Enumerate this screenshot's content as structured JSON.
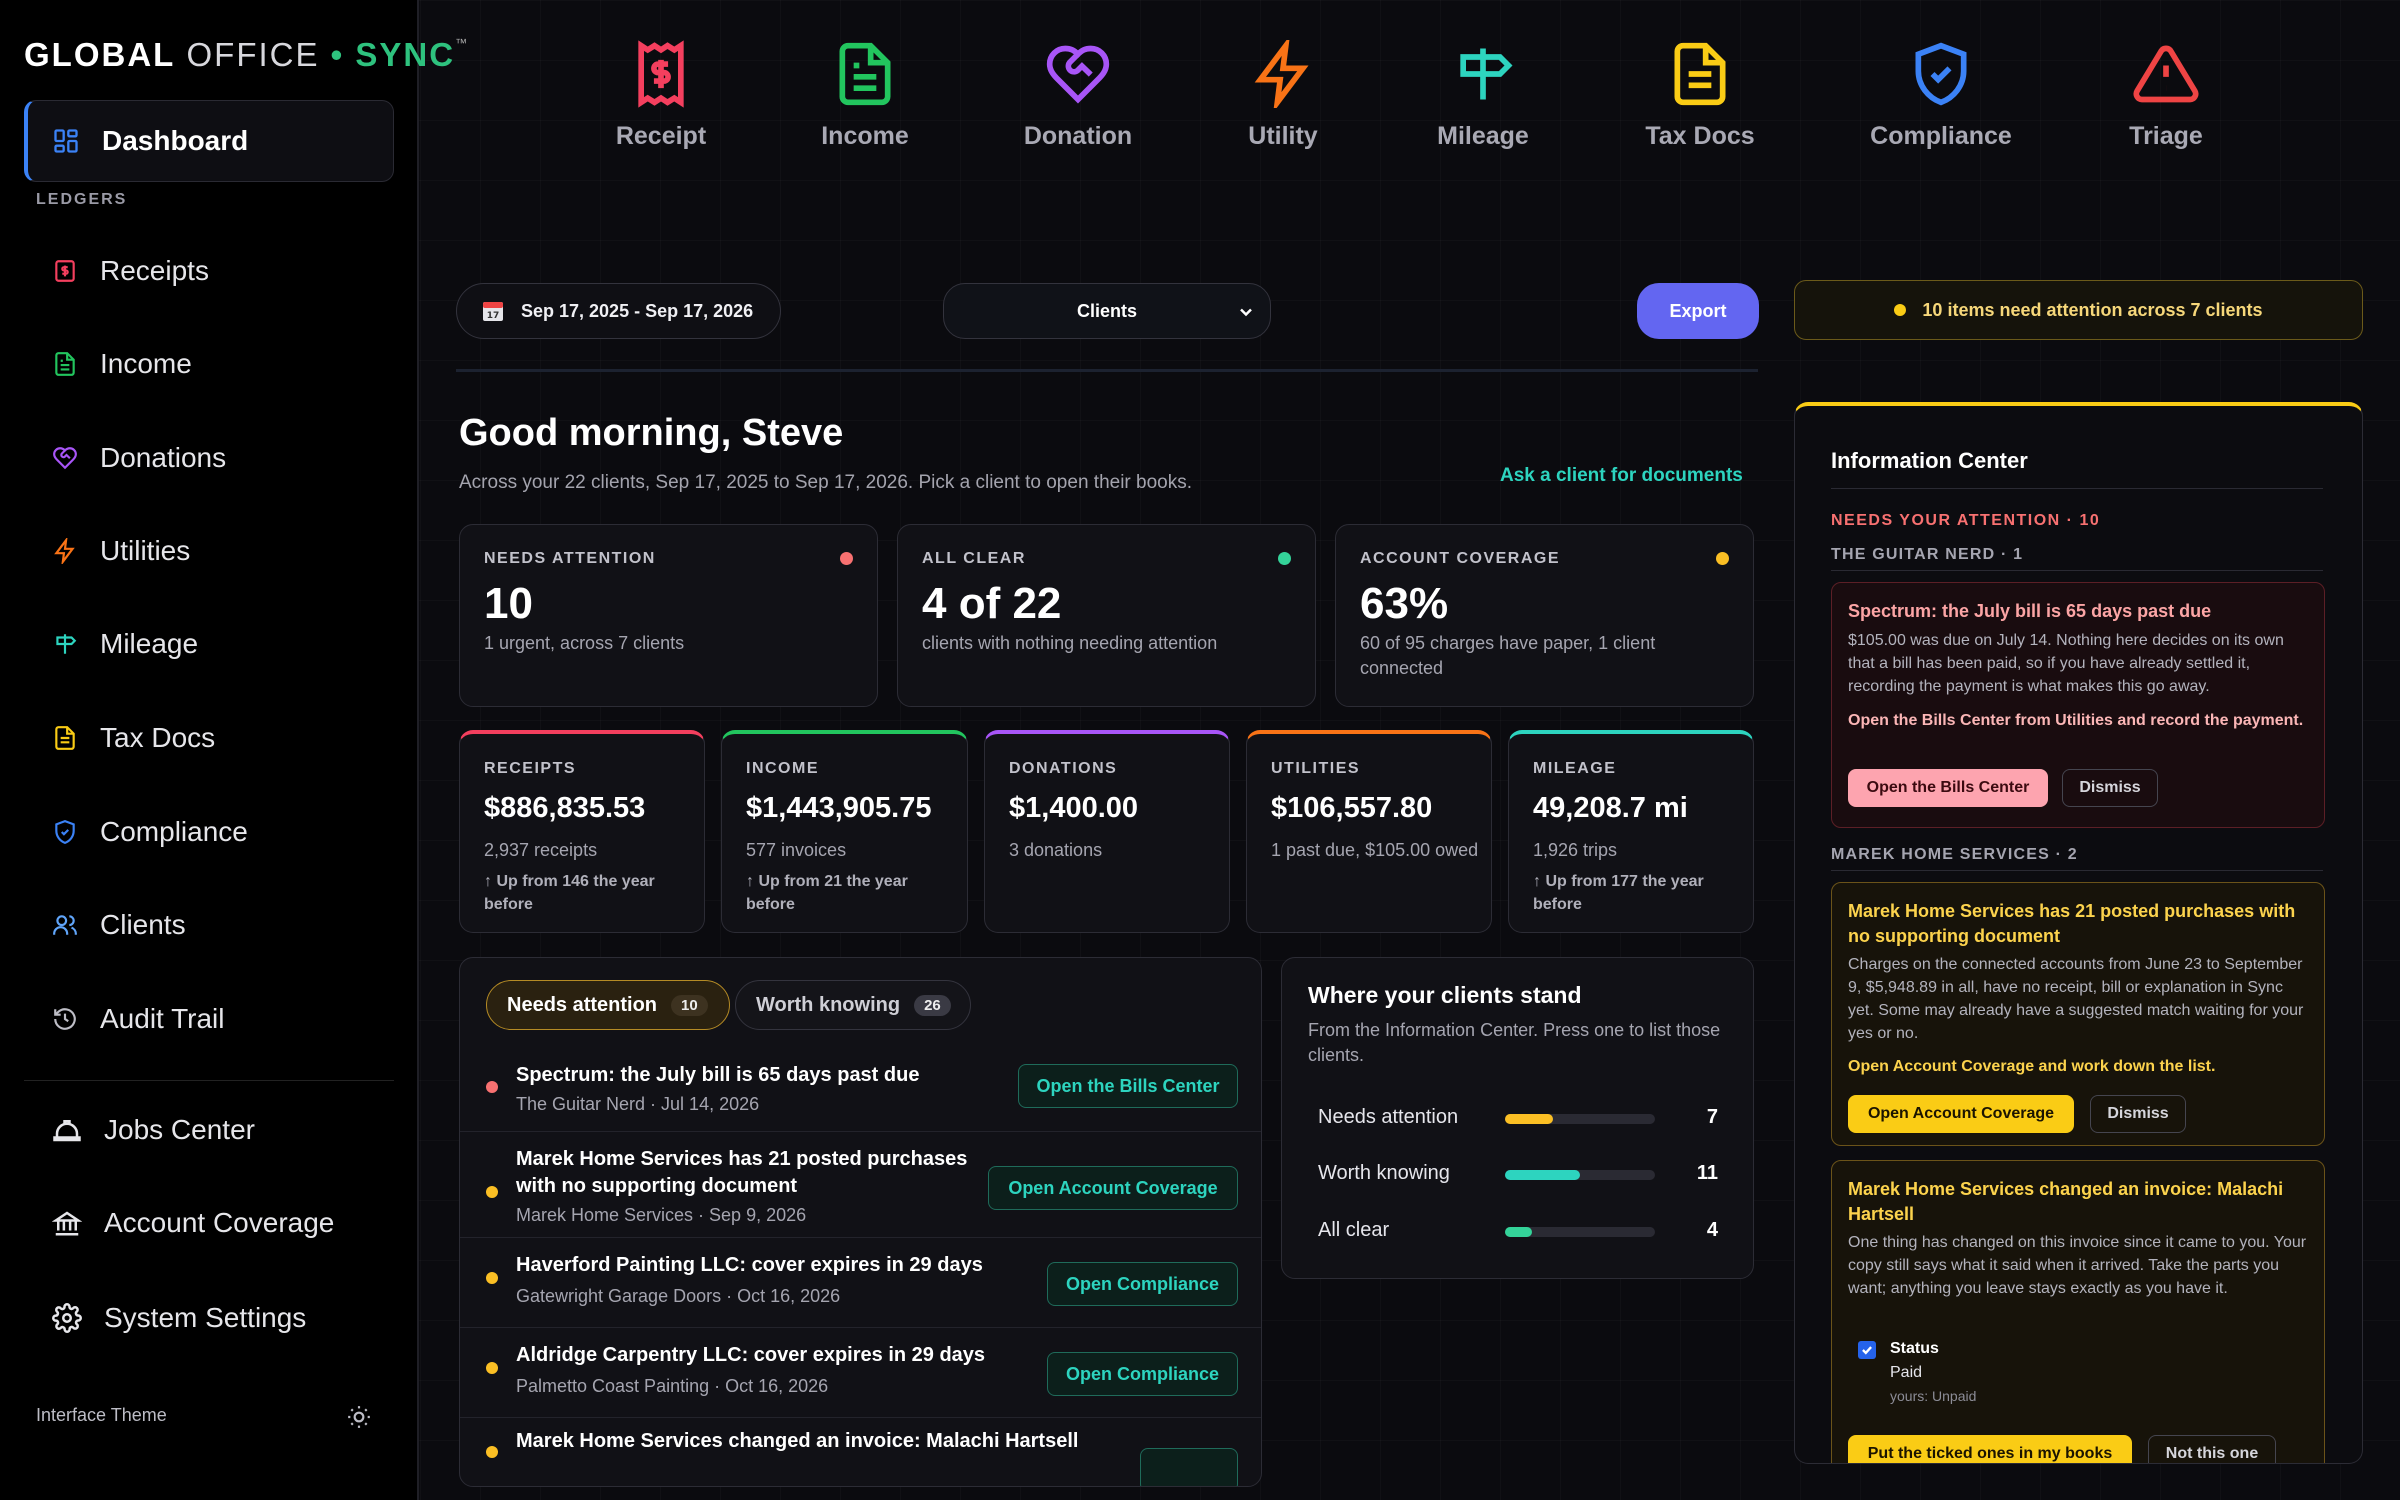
{
  "sidebar": {
    "logo": {
      "part1": "GLOBAL",
      "part2": " OFFICE",
      "sep": " • ",
      "part3": "SYNC",
      "tm": "™"
    },
    "dashboard": "Dashboard",
    "section": "LEDGERS",
    "items": [
      {
        "label": "Receipts"
      },
      {
        "label": "Income"
      },
      {
        "label": "Donations"
      },
      {
        "label": "Utilities"
      },
      {
        "label": "Mileage"
      },
      {
        "label": "Tax Docs"
      },
      {
        "label": "Compliance"
      },
      {
        "label": "Clients"
      },
      {
        "label": "Audit Trail"
      }
    ],
    "bottom": [
      {
        "label": "Jobs Center"
      },
      {
        "label": "Account Coverage"
      },
      {
        "label": "System Settings"
      }
    ],
    "theme": "Interface Theme"
  },
  "top_icons": [
    {
      "label": "Receipt",
      "icon": "receipt-icon",
      "color": "#f43f5e"
    },
    {
      "label": "Income",
      "icon": "document-icon",
      "color": "#22c55e"
    },
    {
      "label": "Donation",
      "icon": "heart-handshake-icon",
      "color": "#a855f7"
    },
    {
      "label": "Utility",
      "icon": "bolt-icon",
      "color": "#f97316"
    },
    {
      "label": "Mileage",
      "icon": "signpost-icon",
      "color": "#2dd4bf"
    },
    {
      "label": "Tax Docs",
      "icon": "tax-doc-icon",
      "color": "#facc15"
    },
    {
      "label": "Compliance",
      "icon": "shield-check-icon",
      "color": "#3b82f6"
    },
    {
      "label": "Triage",
      "icon": "warning-icon",
      "color": "#ef4444"
    }
  ],
  "controls": {
    "date_range": "Sep 17, 2025 - Sep 17, 2026",
    "clients_select": "Clients",
    "export": "Export",
    "attention_banner": "10 items need attention across 7 clients"
  },
  "greeting": {
    "title": "Good morning, Steve",
    "subtitle": "Across your 22 clients, Sep 17, 2025 to Sep 17, 2026. Pick a client to open their books.",
    "ask_link": "Ask a client for documents"
  },
  "stats": [
    {
      "caption": "NEEDS ATTENTION",
      "value": "10",
      "desc": "1 urgent, across 7 clients",
      "color": "#f87171"
    },
    {
      "caption": "ALL CLEAR",
      "value": "4 of 22",
      "desc": "clients with nothing needing attention",
      "color": "#34d399"
    },
    {
      "caption": "ACCOUNT COVERAGE",
      "value": "63%",
      "desc": "60 of 95 charges have paper, 1 client connected",
      "color": "#fbbf24"
    }
  ],
  "ledgers": [
    {
      "caption": "RECEIPTS",
      "value": "$886,835.53",
      "sub": "2,937 receipts",
      "trend": "↑ Up from 146 the year before",
      "color": "#f43f5e"
    },
    {
      "caption": "INCOME",
      "value": "$1,443,905.75",
      "sub": "577 invoices",
      "trend": "↑ Up from 21 the year before",
      "color": "#22c55e"
    },
    {
      "caption": "DONATIONS",
      "value": "$1,400.00",
      "sub": "3 donations",
      "trend": "",
      "color": "#a855f7"
    },
    {
      "caption": "UTILITIES",
      "value": "$106,557.80",
      "sub": "1 past due, $105.00 owed",
      "trend": "",
      "color": "#f97316"
    },
    {
      "caption": "MILEAGE",
      "value": "49,208.7 mi",
      "sub": "1,926 trips",
      "trend": "↑ Up from 177 the year before",
      "color": "#2dd4bf"
    }
  ],
  "feed": {
    "tab_needs": "Needs attention",
    "tab_needs_count": "10",
    "tab_worth": "Worth knowing",
    "tab_worth_count": "26",
    "items": [
      {
        "title": "Spectrum: the July bill is 65 days past due",
        "sub": "The Guitar Nerd · Jul 14, 2026",
        "action": "Open the Bills Center",
        "color": "#f87171"
      },
      {
        "title": "Marek Home Services has 21 posted purchases with no supporting document",
        "sub": "Marek Home Services · Sep 9, 2026",
        "action": "Open Account Coverage",
        "color": "#fbbf24"
      },
      {
        "title": "Haverford Painting LLC: cover expires in 29 days",
        "sub": "Gatewright Garage Doors · Oct 16, 2026",
        "action": "Open Compliance",
        "color": "#fbbf24"
      },
      {
        "title": "Aldridge Carpentry LLC: cover expires in 29 days",
        "sub": "Palmetto Coast Painting · Oct 16, 2026",
        "action": "Open Compliance",
        "color": "#fbbf24"
      },
      {
        "title": "Marek Home Services changed an invoice: Malachi Hartsell",
        "sub": "",
        "action": "",
        "color": "#fbbf24"
      }
    ]
  },
  "where": {
    "title": "Where your clients stand",
    "desc": "From the Information Center. Press one to list those clients.",
    "rows": [
      {
        "label": "Needs attention",
        "count": "7",
        "frac": 0.32,
        "color": "#fbbf24"
      },
      {
        "label": "Worth knowing",
        "count": "11",
        "frac": 0.5,
        "color": "#2dd4bf"
      },
      {
        "label": "All clear",
        "count": "4",
        "frac": 0.18,
        "color": "#34d399"
      }
    ]
  },
  "info": {
    "title": "Information Center",
    "needs": "NEEDS YOUR ATTENTION · 10",
    "group1": "THE GUITAR NERD · 1",
    "card1": {
      "title": "Spectrum: the July bill is 65 days past due",
      "body": "$105.00 was due on July 14. Nothing here decides on its own that a bill has been paid, so if you have already settled it, recording the payment is what makes this go away.",
      "action": "Open the Bills Center from Utilities and record the payment.",
      "primary": "Open the Bills Center",
      "secondary": "Dismiss"
    },
    "group2": "MAREK HOME SERVICES · 2",
    "card2": {
      "title": "Marek Home Services has 21 posted purchases with no supporting document",
      "body": "Charges on the connected accounts from June 23 to September 9, $5,948.89 in all, have no receipt, bill or explanation in Sync yet. Some may already have a suggested match waiting for your yes or no.",
      "action": "Open Account Coverage and work down the list.",
      "primary": "Open Account Coverage",
      "secondary": "Dismiss"
    },
    "card3": {
      "title": "Marek Home Services changed an invoice: Malachi Hartsell",
      "body": "One thing has changed on this invoice since it came to you. Your copy still says what it said when it arrived. Take the parts you want; anything you leave stays exactly as you have it.",
      "field": "Status",
      "new_value": "Paid",
      "yours": "yours: Unpaid",
      "primary": "Put the ticked ones in my books",
      "secondary": "Not this one"
    }
  }
}
